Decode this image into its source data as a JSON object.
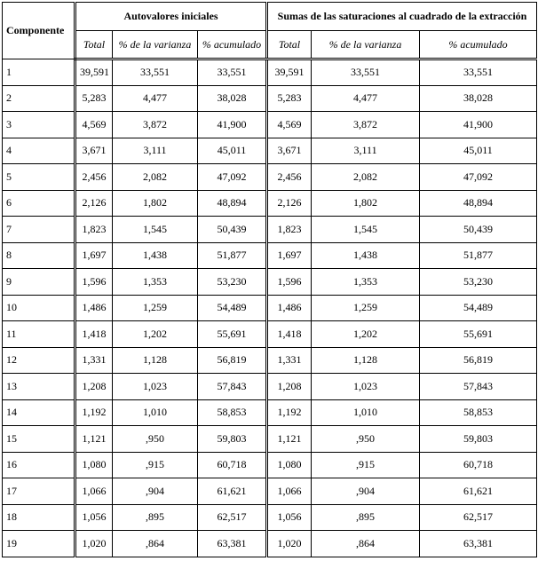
{
  "table": {
    "groups": [
      "Componente",
      "Autovalores iniciales",
      "Sumas de las saturaciones al cuadrado de la extracción"
    ],
    "subheaders": [
      "Total",
      "% de la varianza",
      "% acumulado",
      "Total",
      "% de la varianza",
      "% acumulado"
    ],
    "rows": [
      [
        "1",
        "39,591",
        "33,551",
        "33,551",
        "39,591",
        "33,551",
        "33,551"
      ],
      [
        "2",
        "5,283",
        "4,477",
        "38,028",
        "5,283",
        "4,477",
        "38,028"
      ],
      [
        "3",
        "4,569",
        "3,872",
        "41,900",
        "4,569",
        "3,872",
        "41,900"
      ],
      [
        "4",
        "3,671",
        "3,111",
        "45,011",
        "3,671",
        "3,111",
        "45,011"
      ],
      [
        "5",
        "2,456",
        "2,082",
        "47,092",
        "2,456",
        "2,082",
        "47,092"
      ],
      [
        "6",
        "2,126",
        "1,802",
        "48,894",
        "2,126",
        "1,802",
        "48,894"
      ],
      [
        "7",
        "1,823",
        "1,545",
        "50,439",
        "1,823",
        "1,545",
        "50,439"
      ],
      [
        "8",
        "1,697",
        "1,438",
        "51,877",
        "1,697",
        "1,438",
        "51,877"
      ],
      [
        "9",
        "1,596",
        "1,353",
        "53,230",
        "1,596",
        "1,353",
        "53,230"
      ],
      [
        "10",
        "1,486",
        "1,259",
        "54,489",
        "1,486",
        "1,259",
        "54,489"
      ],
      [
        "11",
        "1,418",
        "1,202",
        "55,691",
        "1,418",
        "1,202",
        "55,691"
      ],
      [
        "12",
        "1,331",
        "1,128",
        "56,819",
        "1,331",
        "1,128",
        "56,819"
      ],
      [
        "13",
        "1,208",
        "1,023",
        "57,843",
        "1,208",
        "1,023",
        "57,843"
      ],
      [
        "14",
        "1,192",
        "1,010",
        "58,853",
        "1,192",
        "1,010",
        "58,853"
      ],
      [
        "15",
        "1,121",
        ",950",
        "59,803",
        "1,121",
        ",950",
        "59,803"
      ],
      [
        "16",
        "1,080",
        ",915",
        "60,718",
        "1,080",
        ",915",
        "60,718"
      ],
      [
        "17",
        "1,066",
        ",904",
        "61,621",
        "1,066",
        ",904",
        "61,621"
      ],
      [
        "18",
        "1,056",
        ",895",
        "62,517",
        "1,056",
        ",895",
        "62,517"
      ],
      [
        "19",
        "1,020",
        ",864",
        "63,381",
        "1,020",
        ",864",
        "63,381"
      ]
    ]
  }
}
